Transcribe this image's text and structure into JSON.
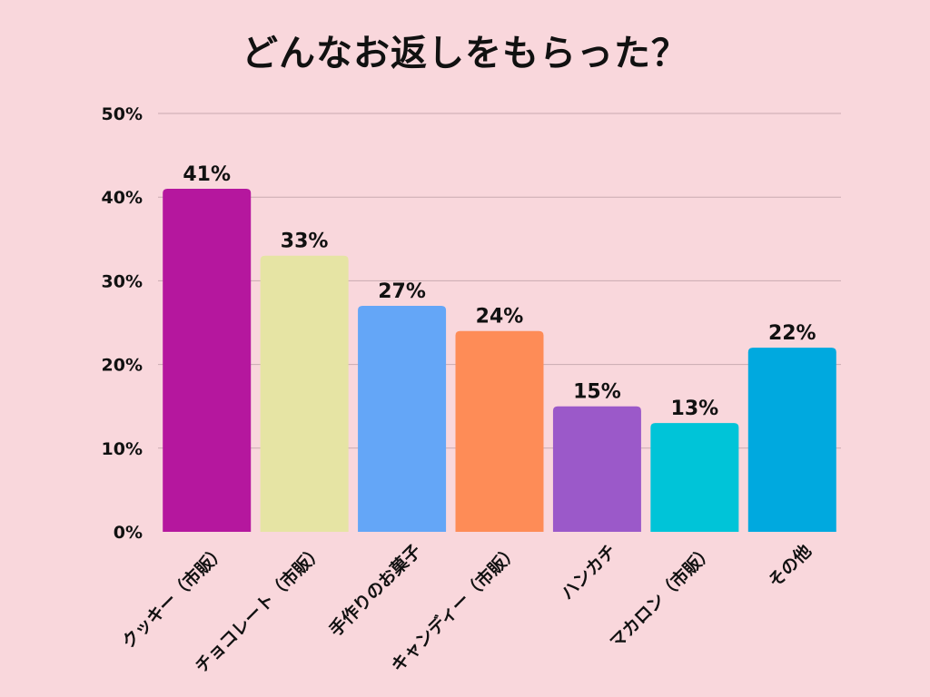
{
  "chart_data": {
    "type": "bar",
    "title": "どんなお返しをもらった？",
    "xlabel": "",
    "ylabel": "",
    "categories": [
      "クッキー（市販）",
      "チョコレート（市販）",
      "手作りのお菓子",
      "キャンディー（市販）",
      "ハンカチ",
      "マカロン（市販）",
      "その他"
    ],
    "values": [
      41,
      33,
      27,
      24,
      15,
      13,
      22
    ],
    "value_labels": [
      "41%",
      "33%",
      "27%",
      "24%",
      "15%",
      "13%",
      "22%"
    ],
    "colors": [
      "#b5179e",
      "#e6e4a4",
      "#64a6f7",
      "#fe8c57",
      "#9b59c9",
      "#00c4d8",
      "#00a9df"
    ],
    "ylim": [
      0,
      50
    ],
    "yticks": [
      0,
      10,
      20,
      30,
      40,
      50
    ],
    "ytick_labels": [
      "0%",
      "10%",
      "20%",
      "30%",
      "40%",
      "50%"
    ],
    "grid": true,
    "legend": "none"
  },
  "colors": {
    "background": "#f9d7dc",
    "grid": "#c9aab0",
    "text": "#111111"
  }
}
